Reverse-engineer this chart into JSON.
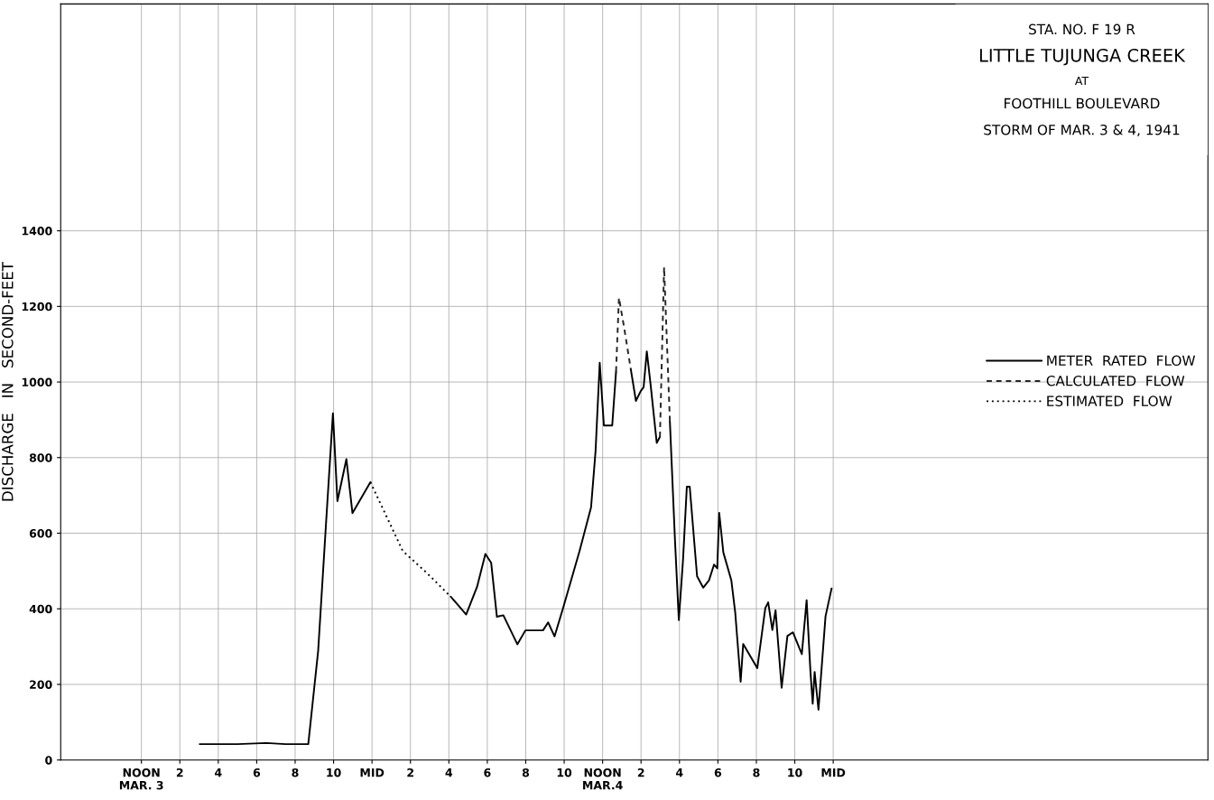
{
  "chart_data": {
    "type": "line",
    "title": "LITTLE TUJUNGA CREEK",
    "subtitle": "STORM OF MAR. 3 & 4, 1941",
    "annotations": [
      "STA. NO. F 19 R",
      "AT",
      "FOOTHILL BOULEVARD"
    ],
    "ylabel": "DISCHARGE   IN   SECOND-FEET",
    "xlim": [
      "1941-03-03T07:48",
      "1941-03-05T19:30"
    ],
    "ylim": [
      0,
      2000
    ],
    "xticks": [
      {
        "value": "1941-03-03T12:00",
        "label": "NOON\nMAR. 3"
      },
      {
        "value": "1941-03-03T14:00",
        "label": "2"
      },
      {
        "value": "1941-03-03T16:00",
        "label": "4"
      },
      {
        "value": "1941-03-03T18:00",
        "label": "6"
      },
      {
        "value": "1941-03-03T20:00",
        "label": "8"
      },
      {
        "value": "1941-03-03T22:00",
        "label": "10"
      },
      {
        "value": "1941-03-04T00:00",
        "label": "MID"
      },
      {
        "value": "1941-03-04T02:00",
        "label": "2"
      },
      {
        "value": "1941-03-04T04:00",
        "label": "4"
      },
      {
        "value": "1941-03-04T06:00",
        "label": "6"
      },
      {
        "value": "1941-03-04T08:00",
        "label": "8"
      },
      {
        "value": "1941-03-04T10:00",
        "label": "10"
      },
      {
        "value": "1941-03-04T12:00",
        "label": "NOON\nMAR.4"
      },
      {
        "value": "1941-03-04T14:00",
        "label": "2"
      },
      {
        "value": "1941-03-04T16:00",
        "label": "4"
      },
      {
        "value": "1941-03-04T18:00",
        "label": "6"
      },
      {
        "value": "1941-03-04T20:00",
        "label": "8"
      },
      {
        "value": "1941-03-04T22:00",
        "label": "10"
      },
      {
        "value": "1941-03-05T00:00",
        "label": "MID"
      }
    ],
    "yticks": [
      0,
      200,
      400,
      600,
      800,
      1000,
      1200,
      1400
    ],
    "grid": true,
    "legend": "right",
    "series": [
      {
        "name": "METER  RATED  FLOW",
        "color": "#000000",
        "line_style": "solid",
        "x": [
          "1941-03-03T15:02",
          "1941-03-03T17:00",
          "1941-03-03T18:30",
          "1941-03-03T19:30",
          "1941-03-03T20:41",
          "1941-03-03T21:12",
          "1941-03-03T21:35",
          "1941-03-03T21:58",
          "1941-03-03T22:12",
          "1941-03-03T22:40",
          "1941-03-03T22:59",
          "1941-03-03T23:55",
          "1941-03-04T02:00",
          "1941-03-04T04:06",
          "1941-03-04T04:54",
          "1941-03-04T05:28",
          "1941-03-04T05:54",
          "1941-03-04T06:12",
          "1941-03-04T06:30",
          "1941-03-04T06:50",
          "1941-03-04T07:34",
          "1941-03-04T07:59",
          "1941-03-04T08:54",
          "1941-03-04T09:10",
          "1941-03-04T09:30",
          "1941-03-04T09:58",
          "1941-03-04T10:48",
          "1941-03-04T11:24",
          "1941-03-04T11:38",
          "1941-03-04T11:51",
          "1941-03-04T12:04",
          "1941-03-04T12:30",
          "1941-03-04T12:42",
          "1941-03-04T13:06",
          "1941-03-04T13:28",
          "1941-03-04T13:44",
          "1941-03-04T13:59",
          "1941-03-04T14:08",
          "1941-03-04T14:18",
          "1941-03-04T14:30",
          "1941-03-04T14:49",
          "1941-03-04T14:59",
          "1941-03-04T15:12",
          "1941-03-04T15:30",
          "1941-03-04T15:46",
          "1941-03-04T15:58",
          "1941-03-04T16:11",
          "1941-03-04T16:23",
          "1941-03-04T16:32",
          "1941-03-04T16:55",
          "1941-03-04T17:14",
          "1941-03-04T17:32",
          "1941-03-04T17:48",
          "1941-03-04T17:58",
          "1941-03-04T18:04",
          "1941-03-04T18:17",
          "1941-03-04T18:42",
          "1941-03-04T18:54",
          "1941-03-04T19:11",
          "1941-03-04T19:19",
          "1941-03-04T20:03",
          "1941-03-04T20:28",
          "1941-03-04T20:37",
          "1941-03-04T20:50",
          "1941-03-04T21:00",
          "1941-03-04T21:19",
          "1941-03-04T21:37",
          "1941-03-04T21:54",
          "1941-03-04T22:22",
          "1941-03-04T22:37",
          "1941-03-04T22:49",
          "1941-03-04T22:56",
          "1941-03-04T23:02",
          "1941-03-04T23:14",
          "1941-03-04T23:36",
          "1941-03-04T23:55"
        ],
        "values": [
          42,
          42,
          45,
          42,
          42,
          290,
          606,
          917,
          685,
          796,
          653,
          735,
          null,
          432,
          385,
          458,
          545,
          522,
          379,
          383,
          306,
          343,
          343,
          364,
          327,
          406,
          553,
          669,
          817,
          1051,
          885,
          885,
          1028,
          null,
          1034,
          950,
          976,
          986,
          1081,
          992,
          839,
          855,
          null,
          897,
          581,
          370,
          528,
          723,
          723,
          486,
          456,
          475,
          517,
          507,
          654,
          549,
          475,
          391,
          207,
          307,
          243,
          402,
          417,
          344,
          396,
          191,
          328,
          338,
          280,
          423,
          233,
          149,
          233,
          133,
          380,
          454
        ]
      },
      {
        "name": "CALCULATED  FLOW",
        "color": "#262626",
        "line_style": "dashed",
        "x": [
          "1941-03-04T12:42",
          "1941-03-04T12:51",
          "1941-03-04T13:06",
          "1941-03-04T13:28",
          "1941-03-04T14:00",
          "1941-03-04T14:59",
          "1941-03-04T15:12",
          "1941-03-04T15:30"
        ],
        "values": [
          1028,
          1223,
          1150,
          1034,
          null,
          855,
          1304,
          897
        ]
      },
      {
        "name": "ESTIMATED  FLOW",
        "color": "#000000",
        "line_style": "dotted",
        "x": [
          "1941-03-03T23:55",
          "1941-03-04T01:36",
          "1941-03-04T02:51",
          "1941-03-04T04:06"
        ],
        "values": [
          735,
          553,
          495,
          432
        ]
      }
    ]
  }
}
